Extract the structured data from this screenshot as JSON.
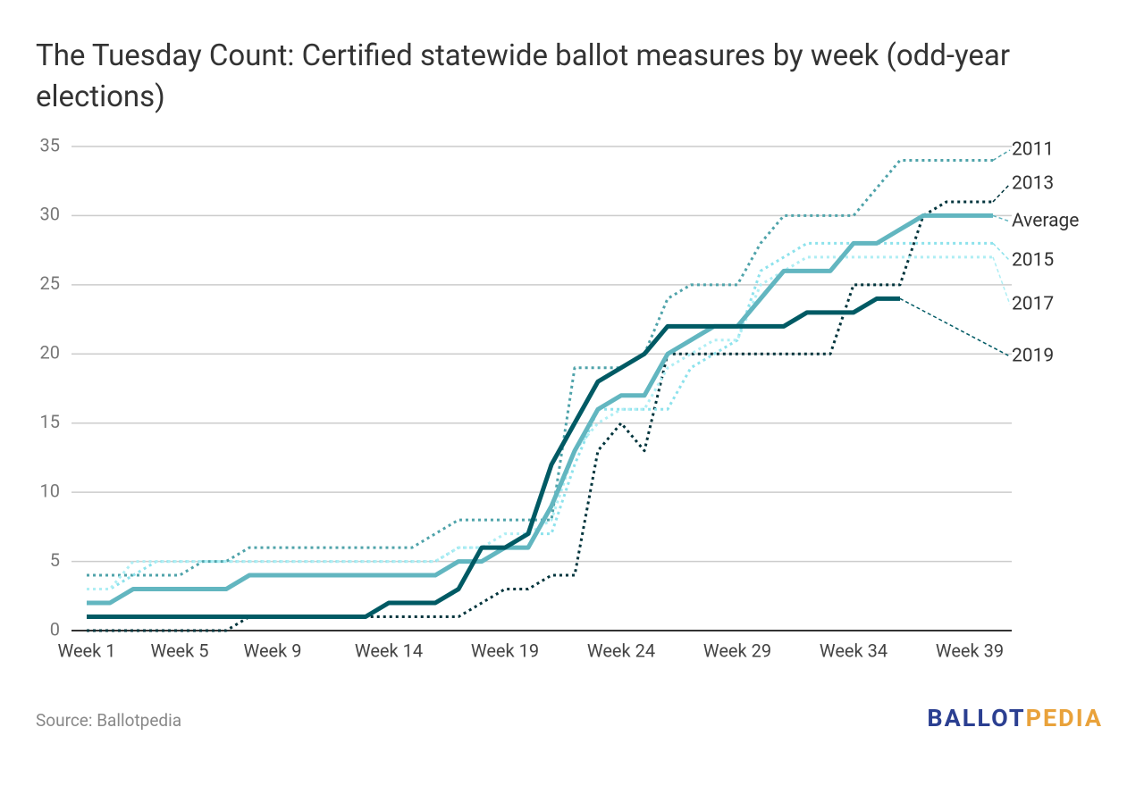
{
  "chart_data": {
    "type": "line",
    "title": "The Tuesday Count: Certified statewide ballot measures by week (odd-year elections)",
    "source": "Source: Ballotpedia",
    "logo": [
      "BALLOT",
      "PEDIA"
    ],
    "categories": [
      "Week 1",
      null,
      null,
      null,
      "Week 5",
      null,
      null,
      null,
      "Week 9",
      null,
      null,
      null,
      null,
      "Week 14",
      null,
      null,
      null,
      null,
      "Week 19",
      null,
      null,
      null,
      null,
      "Week 24",
      null,
      null,
      null,
      null,
      "Week 29",
      null,
      null,
      null,
      null,
      "Week 34",
      null,
      null,
      null,
      null,
      "Week 39",
      null
    ],
    "ylim": [
      0,
      35
    ],
    "yticks": [
      0,
      5,
      10,
      15,
      20,
      25,
      30,
      35
    ],
    "grid": true,
    "series": [
      {
        "name": "2011",
        "color": "#4fa3aa",
        "dash": true,
        "values": [
          4,
          4,
          4,
          4,
          4,
          5,
          5,
          6,
          6,
          6,
          6,
          6,
          6,
          6,
          6,
          7,
          8,
          8,
          8,
          8,
          8,
          19,
          19,
          19,
          20,
          24,
          25,
          25,
          25,
          28,
          30,
          30,
          30,
          30,
          32,
          34,
          34,
          34,
          34,
          34
        ]
      },
      {
        "name": "2013",
        "color": "#00343c",
        "dash": true,
        "values": [
          0,
          0,
          0,
          0,
          0,
          0,
          0,
          1,
          1,
          1,
          1,
          1,
          1,
          1,
          1,
          1,
          1,
          2,
          3,
          3,
          4,
          4,
          13,
          15,
          13,
          20,
          20,
          20,
          20,
          20,
          20,
          20,
          20,
          25,
          25,
          25,
          30,
          31,
          31,
          31
        ]
      },
      {
        "name": "Average",
        "color": "#62b6c0",
        "dash": false,
        "values": [
          2,
          2,
          3,
          3,
          3,
          3,
          3,
          4,
          4,
          4,
          4,
          4,
          4,
          4,
          4,
          4,
          5,
          5,
          6,
          6,
          9,
          13,
          16,
          17,
          17,
          20,
          21,
          22,
          22,
          24,
          26,
          26,
          26,
          28,
          28,
          29,
          30,
          30,
          30,
          30
        ]
      },
      {
        "name": "2015",
        "color": "#8de2ec",
        "dash": true,
        "values": [
          3,
          3,
          4,
          5,
          5,
          5,
          5,
          5,
          5,
          5,
          5,
          5,
          5,
          5,
          5,
          5,
          6,
          6,
          6,
          7,
          7,
          12,
          16,
          16,
          16,
          16,
          19,
          20,
          21,
          26,
          27,
          28,
          28,
          28,
          28,
          28,
          28,
          28,
          28,
          28
        ]
      },
      {
        "name": "2017",
        "color": "#aeeef4",
        "dash": true,
        "values": [
          3,
          3,
          5,
          5,
          5,
          5,
          5,
          5,
          5,
          5,
          5,
          5,
          5,
          5,
          5,
          5,
          6,
          6,
          7,
          7,
          8,
          13,
          15,
          16,
          16,
          19,
          20,
          21,
          21,
          25,
          26,
          27,
          27,
          27,
          27,
          27,
          27,
          27,
          27,
          27
        ]
      },
      {
        "name": "2019",
        "color": "#005a64",
        "dash": false,
        "values": [
          1,
          1,
          1,
          1,
          1,
          1,
          1,
          1,
          1,
          1,
          1,
          1,
          1,
          2,
          2,
          2,
          3,
          6,
          6,
          7,
          12,
          15,
          18,
          19,
          20,
          22,
          22,
          22,
          22,
          22,
          22,
          23,
          23,
          23,
          24,
          24,
          null,
          null,
          null,
          null
        ]
      }
    ]
  }
}
